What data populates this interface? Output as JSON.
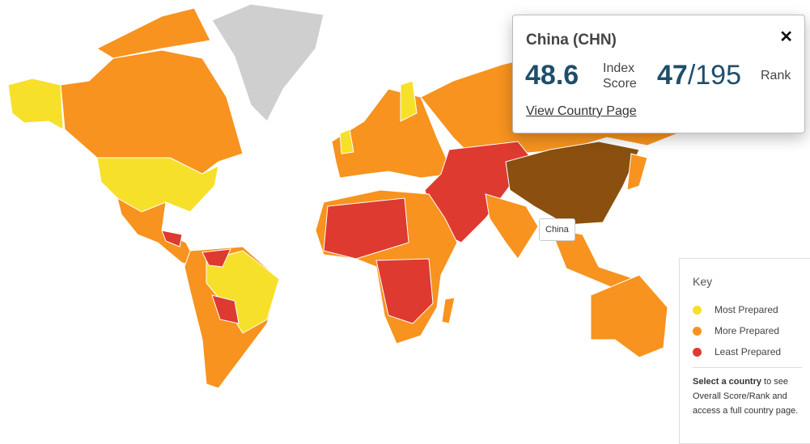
{
  "popup": {
    "title": "China (CHN)",
    "score": 48.6,
    "score_label_1": "Index",
    "score_label_2": "Score",
    "rank": 47,
    "rank_total": "/195",
    "rank_label": "Rank",
    "link": "View Country Page",
    "close": "✕"
  },
  "tooltip": "China",
  "key": {
    "title": "Key",
    "items": [
      {
        "label": "Most Prepared",
        "color": "#f6e02a"
      },
      {
        "label": "More Prepared",
        "color": "#f7931e"
      },
      {
        "label": "Least Prepared",
        "color": "#de3a30"
      }
    ],
    "note_bold": "Select a country",
    "note": " to see Overall Score/Rank and access a full country page."
  }
}
